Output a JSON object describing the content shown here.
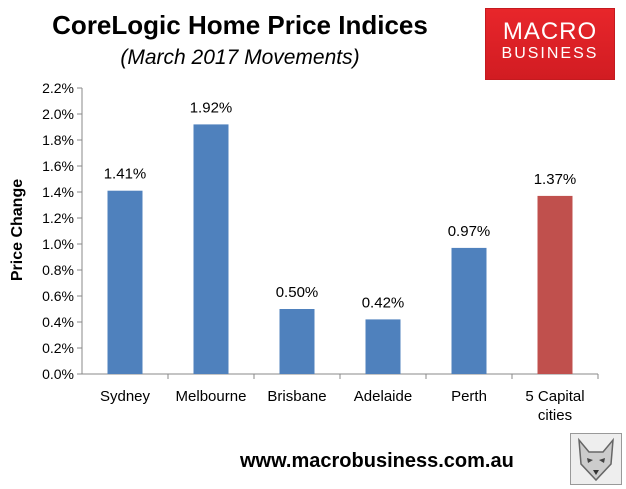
{
  "header": {
    "title": "CoreLogic Home Price Indices",
    "subtitle": "(March 2017 Movements)"
  },
  "logo": {
    "line1": "MACRO",
    "line2": "BUSINESS"
  },
  "footer": {
    "url": "www.macrobusiness.com.au"
  },
  "chart_data": {
    "type": "bar",
    "title": "CoreLogic Home Price Indices",
    "subtitle": "(March 2017 Movements)",
    "ylabel": "Price Change",
    "xlabel": "",
    "ylim": [
      0,
      2.2
    ],
    "yticks": [
      "0.0%",
      "0.2%",
      "0.4%",
      "0.6%",
      "0.8%",
      "1.0%",
      "1.2%",
      "1.4%",
      "1.6%",
      "1.8%",
      "2.0%",
      "2.2%"
    ],
    "categories": [
      [
        "Sydney"
      ],
      [
        "Melbourne"
      ],
      [
        "Brisbane"
      ],
      [
        "Adelaide"
      ],
      [
        "Perth"
      ],
      [
        "5 Capital",
        "cities"
      ]
    ],
    "values": [
      1.41,
      1.92,
      0.5,
      0.42,
      0.97,
      1.37
    ],
    "labels": [
      "1.41%",
      "1.92%",
      "0.50%",
      "0.42%",
      "0.97%",
      "1.37%"
    ],
    "colors": [
      "#4f81bd",
      "#4f81bd",
      "#4f81bd",
      "#4f81bd",
      "#4f81bd",
      "#c0504d"
    ],
    "grid": false,
    "legend": "none"
  }
}
